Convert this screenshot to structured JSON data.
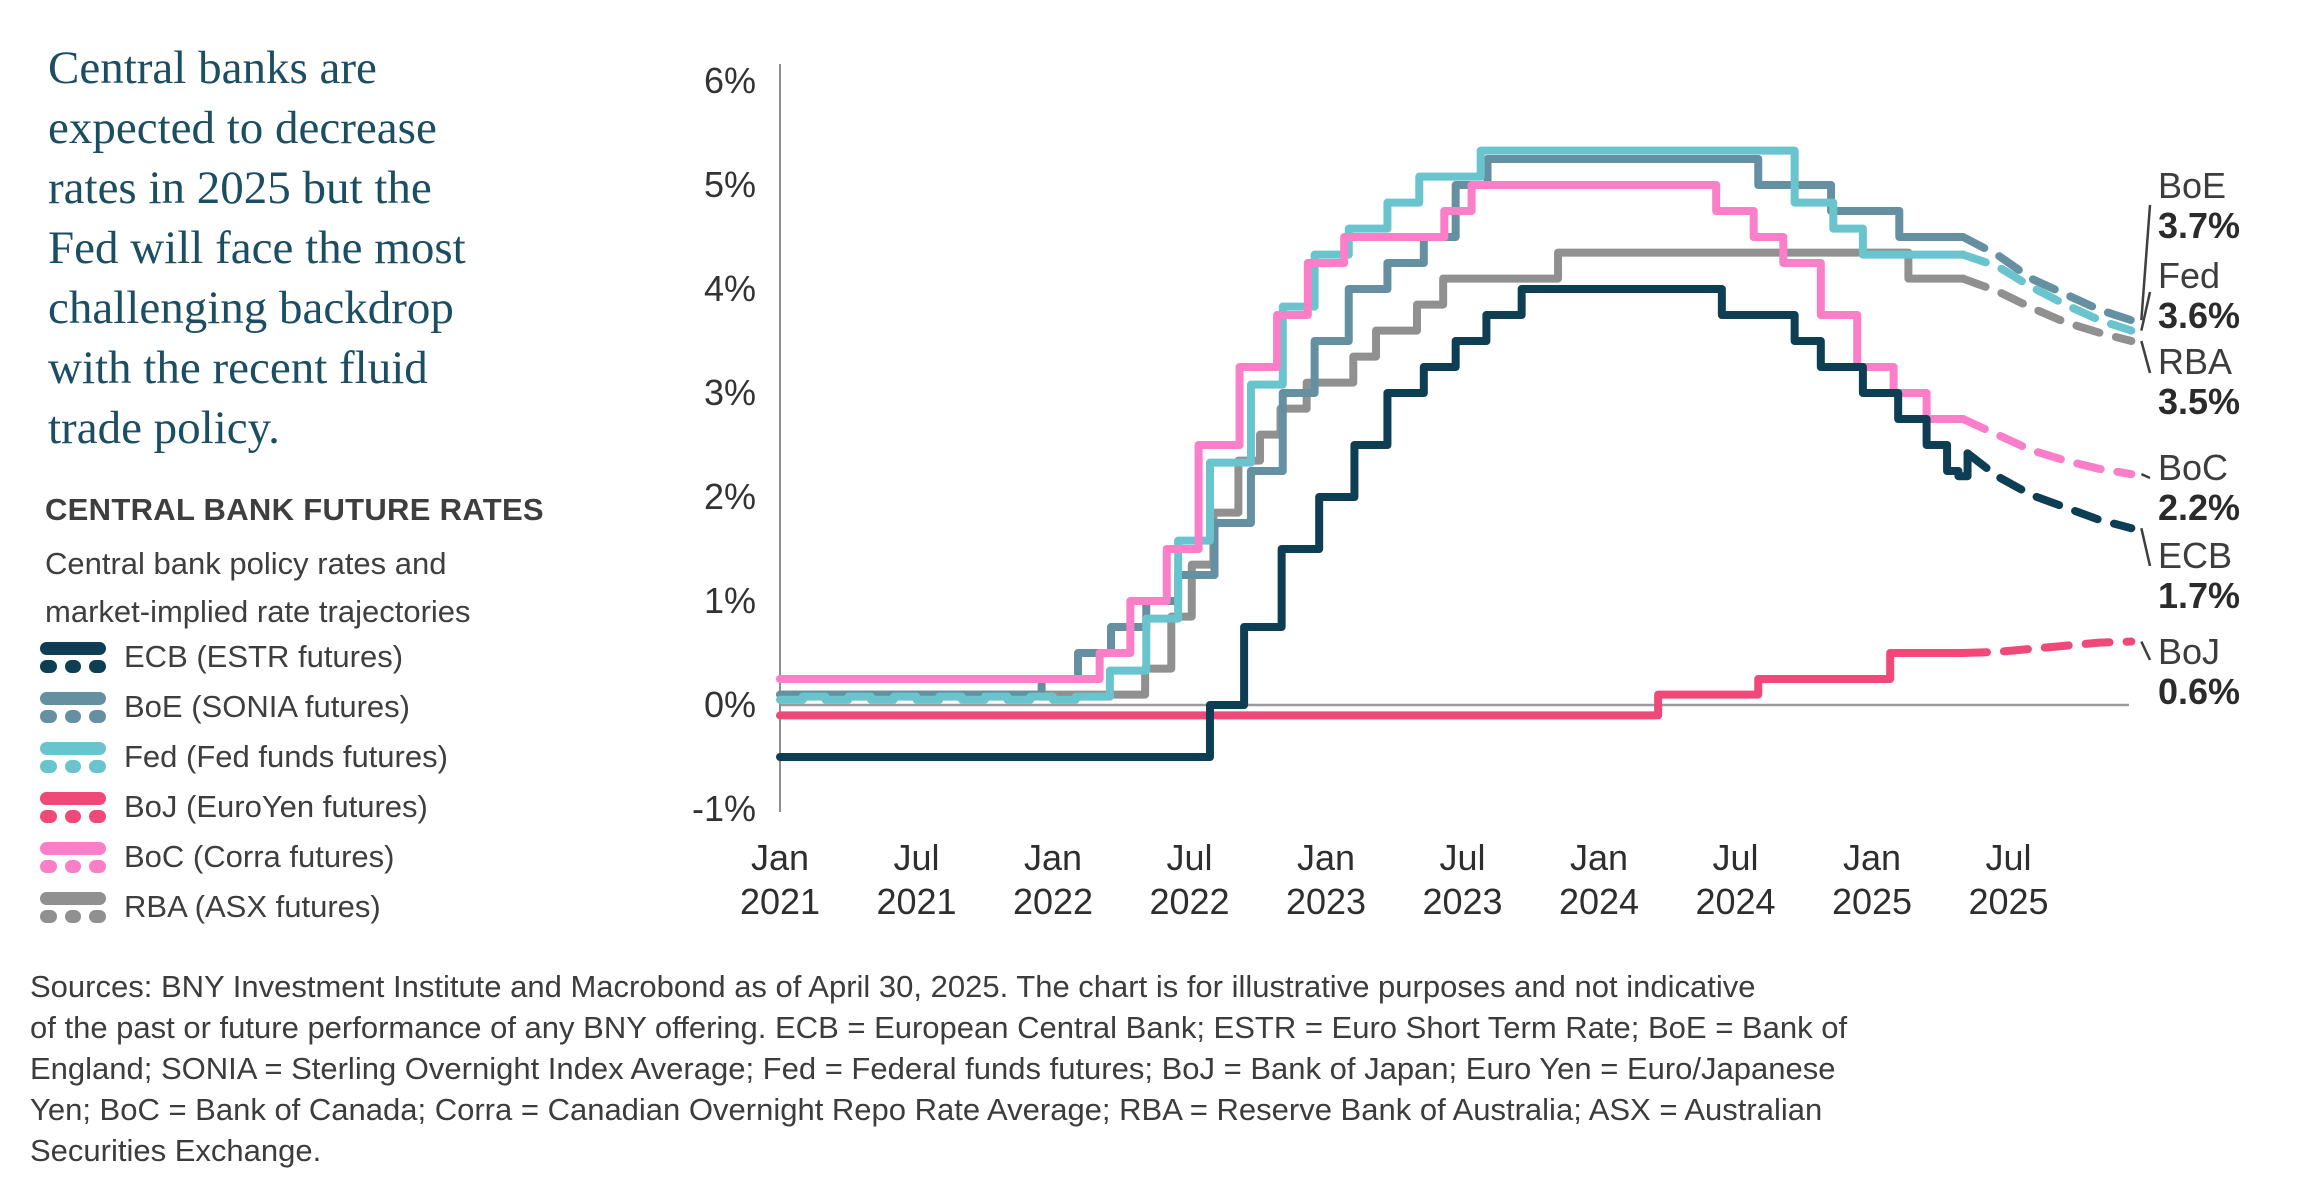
{
  "left_panel": {
    "title_lines": [
      "Central banks are",
      "expected to decrease",
      "rates in 2025 but the",
      "Fed will face the most",
      "challenging backdrop",
      "with the recent fluid",
      "trade policy."
    ],
    "heading": "CENTRAL BANK FUTURE RATES",
    "subtitle_lines": [
      "Central bank policy rates and",
      "market-implied rate trajectories"
    ],
    "legend": [
      {
        "key": "ECB",
        "label": "ECB (ESTR futures)"
      },
      {
        "key": "BoE",
        "label": "BoE (SONIA futures)"
      },
      {
        "key": "Fed",
        "label": "Fed (Fed funds futures)"
      },
      {
        "key": "BoJ",
        "label": "BoJ (EuroYen futures)"
      },
      {
        "key": "BoC",
        "label": "BoC (Corra futures)"
      },
      {
        "key": "RBA",
        "label": "RBA (ASX futures)"
      }
    ]
  },
  "chart_data": {
    "type": "line",
    "title": "CENTRAL BANK FUTURE RATES",
    "subtitle": "Central bank policy rates and market-implied rate trajectories",
    "unit": "percent",
    "grid": "zero-line only",
    "x_axis": {
      "note": "t = months since Jan 2021; solid history to ~Apr 2025, dashed market-implied projection to ~Dec 2025",
      "ticks": [
        {
          "month": "Jan",
          "year": "2021",
          "t": 0
        },
        {
          "month": "Jul",
          "year": "2021",
          "t": 6
        },
        {
          "month": "Jan",
          "year": "2022",
          "t": 12
        },
        {
          "month": "Jul",
          "year": "2022",
          "t": 18
        },
        {
          "month": "Jan",
          "year": "2023",
          "t": 24
        },
        {
          "month": "Jul",
          "year": "2023",
          "t": 30
        },
        {
          "month": "Jan",
          "year": "2024",
          "t": 36
        },
        {
          "month": "Jul",
          "year": "2024",
          "t": 42
        },
        {
          "month": "Jan",
          "year": "2025",
          "t": 48
        },
        {
          "month": "Jul",
          "year": "2025",
          "t": 54
        }
      ]
    },
    "y_axis": {
      "min": -1,
      "max": 6,
      "tick_step": 1,
      "labels": [
        {
          "text": "6%",
          "v": 6
        },
        {
          "text": "5%",
          "v": 5
        },
        {
          "text": "4%",
          "v": 4
        },
        {
          "text": "3%",
          "v": 3
        },
        {
          "text": "2%",
          "v": 2
        },
        {
          "text": "1%",
          "v": 1
        },
        {
          "text": "0%",
          "v": 0
        },
        {
          "text": "-1%",
          "v": -1
        }
      ]
    },
    "zero_line": true,
    "series": [
      {
        "name": "RBA",
        "legend": "RBA (ASX futures)",
        "color": "#909090",
        "final_label": "3.5%",
        "steps": [
          [
            0,
            0.1
          ],
          [
            16.05,
            0.35
          ],
          [
            17.2,
            0.85
          ],
          [
            18.1,
            1.35
          ],
          [
            19.05,
            1.85
          ],
          [
            20.15,
            2.35
          ],
          [
            21.1,
            2.6
          ],
          [
            22.0,
            2.85
          ],
          [
            23.15,
            3.1
          ],
          [
            25.2,
            3.35
          ],
          [
            26.2,
            3.6
          ],
          [
            28.0,
            3.85
          ],
          [
            29.15,
            4.1
          ],
          [
            34.2,
            4.35
          ],
          [
            49.6,
            4.1
          ]
        ],
        "projection": [
          [
            52,
            4.1
          ],
          [
            53.5,
            3.98
          ],
          [
            55,
            3.82
          ],
          [
            56.5,
            3.68
          ],
          [
            58,
            3.58
          ],
          [
            59.4,
            3.5
          ]
        ]
      },
      {
        "name": "BoE",
        "legend": "BoE (SONIA futures)",
        "color": "#6590a2",
        "final_label": "3.7%",
        "steps": [
          [
            0,
            0.1
          ],
          [
            11.5,
            0.25
          ],
          [
            13.1,
            0.5
          ],
          [
            14.55,
            0.75
          ],
          [
            16.1,
            1.0
          ],
          [
            17.5,
            1.25
          ],
          [
            19.1,
            1.75
          ],
          [
            20.7,
            2.25
          ],
          [
            22.1,
            3.0
          ],
          [
            23.5,
            3.5
          ],
          [
            25.0,
            4.0
          ],
          [
            26.7,
            4.25
          ],
          [
            28.3,
            4.5
          ],
          [
            29.7,
            5.0
          ],
          [
            31.1,
            5.25
          ],
          [
            43.0,
            5.0
          ],
          [
            46.2,
            4.75
          ],
          [
            49.2,
            4.5
          ]
        ],
        "projection": [
          [
            52,
            4.5
          ],
          [
            53.5,
            4.33
          ],
          [
            55,
            4.1
          ],
          [
            56.5,
            3.95
          ],
          [
            58,
            3.8
          ],
          [
            59.4,
            3.7
          ]
        ]
      },
      {
        "name": "Fed",
        "legend": "Fed (Fed funds futures)",
        "color": "#6ac4cd",
        "final_label": "3.6%",
        "steps": [
          [
            0,
            0.05
          ],
          [
            1,
            0.08
          ],
          [
            2,
            0.05
          ],
          [
            3,
            0.08
          ],
          [
            4,
            0.05
          ],
          [
            5,
            0.08
          ],
          [
            6,
            0.05
          ],
          [
            7,
            0.08
          ],
          [
            8,
            0.05
          ],
          [
            9,
            0.08
          ],
          [
            10,
            0.05
          ],
          [
            11,
            0.08
          ],
          [
            12,
            0.05
          ],
          [
            13,
            0.08
          ],
          [
            14.5,
            0.33
          ],
          [
            16.1,
            0.83
          ],
          [
            17.5,
            1.58
          ],
          [
            18.9,
            2.33
          ],
          [
            20.7,
            3.08
          ],
          [
            22.1,
            3.83
          ],
          [
            23.5,
            4.33
          ],
          [
            25.0,
            4.58
          ],
          [
            26.7,
            4.83
          ],
          [
            28.1,
            5.08
          ],
          [
            30.8,
            5.33
          ],
          [
            44.6,
            4.83
          ],
          [
            46.3,
            4.58
          ],
          [
            47.6,
            4.33
          ]
        ],
        "projection": [
          [
            52,
            4.33
          ],
          [
            53.5,
            4.22
          ],
          [
            55,
            4.02
          ],
          [
            56.5,
            3.85
          ],
          [
            58,
            3.7
          ],
          [
            59.4,
            3.6
          ]
        ]
      },
      {
        "name": "BoC",
        "legend": "BoC (Corra futures)",
        "color": "#fb7ec9",
        "final_label": "2.2%",
        "steps": [
          [
            0,
            0.25
          ],
          [
            14.05,
            0.5
          ],
          [
            15.4,
            1.0
          ],
          [
            17.0,
            1.5
          ],
          [
            18.4,
            2.5
          ],
          [
            20.2,
            3.25
          ],
          [
            21.85,
            3.75
          ],
          [
            23.2,
            4.25
          ],
          [
            24.8,
            4.5
          ],
          [
            29.2,
            4.75
          ],
          [
            30.4,
            5.0
          ],
          [
            41.15,
            4.75
          ],
          [
            42.8,
            4.5
          ],
          [
            44.1,
            4.25
          ],
          [
            45.75,
            3.75
          ],
          [
            47.35,
            3.25
          ],
          [
            48.95,
            3.0
          ],
          [
            50.4,
            2.75
          ]
        ],
        "projection": [
          [
            52,
            2.75
          ],
          [
            53.5,
            2.6
          ],
          [
            55,
            2.45
          ],
          [
            56.5,
            2.35
          ],
          [
            58,
            2.27
          ],
          [
            59.4,
            2.22
          ]
        ]
      },
      {
        "name": "BoJ",
        "legend": "BoJ (EuroYen futures)",
        "color": "#ef4879",
        "final_label": "0.6%",
        "steps": [
          [
            0,
            -0.1
          ],
          [
            38.6,
            0.1
          ],
          [
            43.0,
            0.25
          ],
          [
            48.8,
            0.5
          ]
        ],
        "projection": [
          [
            52,
            0.5
          ],
          [
            53.5,
            0.51
          ],
          [
            55,
            0.54
          ],
          [
            56.5,
            0.57
          ],
          [
            58,
            0.6
          ],
          [
            59.4,
            0.61
          ]
        ]
      },
      {
        "name": "ECB",
        "legend": "ECB (ESTR futures)",
        "color": "#0e3e54",
        "final_label": "1.7%",
        "steps": [
          [
            0,
            -0.5
          ],
          [
            18.9,
            0.0
          ],
          [
            20.4,
            0.75
          ],
          [
            22.05,
            1.5
          ],
          [
            23.7,
            2.0
          ],
          [
            25.25,
            2.5
          ],
          [
            26.7,
            3.0
          ],
          [
            28.3,
            3.25
          ],
          [
            29.7,
            3.5
          ],
          [
            31.05,
            3.75
          ],
          [
            32.6,
            4.0
          ],
          [
            41.4,
            3.75
          ],
          [
            44.6,
            3.5
          ],
          [
            45.75,
            3.25
          ],
          [
            47.6,
            3.0
          ],
          [
            49.15,
            2.75
          ],
          [
            50.4,
            2.5
          ],
          [
            51.3,
            2.25
          ],
          [
            51.8,
            2.2
          ],
          [
            52.2,
            2.42
          ]
        ],
        "projection": [
          [
            52.2,
            2.42
          ],
          [
            53.5,
            2.2
          ],
          [
            55,
            2.02
          ],
          [
            56.5,
            1.9
          ],
          [
            58,
            1.78
          ],
          [
            59.4,
            1.7
          ]
        ]
      }
    ],
    "annotations": [
      {
        "series": "BoE",
        "name": "BoE",
        "value": "3.7%"
      },
      {
        "series": "Fed",
        "name": "Fed",
        "value": "3.6%"
      },
      {
        "series": "RBA",
        "name": "RBA",
        "value": "3.5%"
      },
      {
        "series": "BoC",
        "name": "BoC",
        "value": "2.2%"
      },
      {
        "series": "ECB",
        "name": "ECB",
        "value": "1.7%"
      },
      {
        "series": "BoJ",
        "name": "BoJ",
        "value": "0.6%"
      }
    ]
  },
  "footer": {
    "lines": [
      "Sources: BNY Investment Institute and Macrobond as of April 30, 2025. The chart is for illustrative purposes and not indicative",
      "of the past or future performance of any BNY offering. ECB = European Central Bank; ESTR = Euro Short Term Rate; BoE = Bank of",
      "England; SONIA = Sterling Overnight Index Average; Fed = Federal funds futures; BoJ = Bank of Japan; Euro Yen = Euro/Japanese",
      "Yen; BoC = Bank of Canada; Corra = Canadian Overnight Repo Rate Average; RBA = Reserve Bank of Australia; ASX = Australian",
      "Securities Exchange."
    ]
  }
}
